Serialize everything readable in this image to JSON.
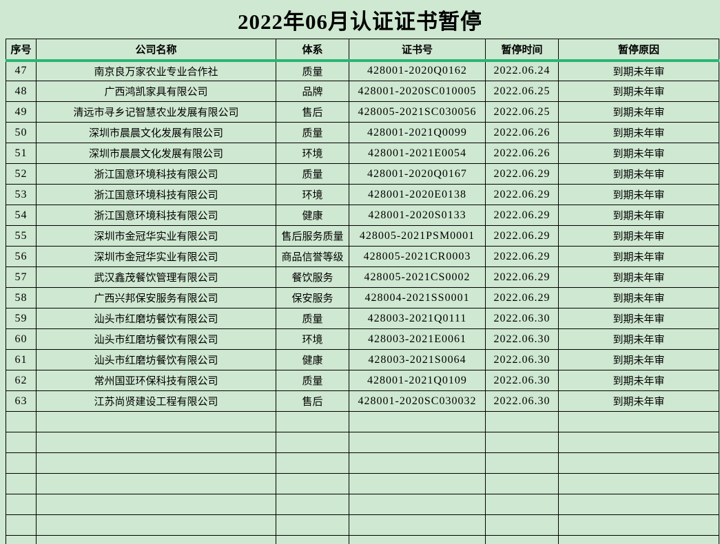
{
  "page": {
    "title": "2022年06月认证证书暂停"
  },
  "colors": {
    "background": "#cfe8d1",
    "header_underline": "#2ab573",
    "grid_line": "#000000",
    "text": "#000000"
  },
  "table": {
    "headers": [
      "序号",
      "公司名称",
      "体系",
      "证书号",
      "暂停时间",
      "暂停原因"
    ],
    "rows": [
      [
        "47",
        "南京良万家农业专业合作社",
        "质量",
        "428001-2020Q0162",
        "2022.06.24",
        "到期未年审"
      ],
      [
        "48",
        "广西鸿凯家具有限公司",
        "品牌",
        "428001-2020SC010005",
        "2022.06.25",
        "到期未年审"
      ],
      [
        "49",
        "清远市寻乡记智慧农业发展有限公司",
        "售后",
        "428005-2021SC030056",
        "2022.06.25",
        "到期未年审"
      ],
      [
        "50",
        "深圳市晨晨文化发展有限公司",
        "质量",
        "428001-2021Q0099",
        "2022.06.26",
        "到期未年审"
      ],
      [
        "51",
        "深圳市晨晨文化发展有限公司",
        "环境",
        "428001-2021E0054",
        "2022.06.26",
        "到期未年审"
      ],
      [
        "52",
        "浙江国意环境科技有限公司",
        "质量",
        "428001-2020Q0167",
        "2022.06.29",
        "到期未年审"
      ],
      [
        "53",
        "浙江国意环境科技有限公司",
        "环境",
        "428001-2020E0138",
        "2022.06.29",
        "到期未年审"
      ],
      [
        "54",
        "浙江国意环境科技有限公司",
        "健康",
        "428001-2020S0133",
        "2022.06.29",
        "到期未年审"
      ],
      [
        "55",
        "深圳市金冠华实业有限公司",
        "售后服务质量",
        "428005-2021PSM0001",
        "2022.06.29",
        "到期未年审"
      ],
      [
        "56",
        "深圳市金冠华实业有限公司",
        "商品信誉等级",
        "428005-2021CR0003",
        "2022.06.29",
        "到期未年审"
      ],
      [
        "57",
        "武汉鑫茂餐饮管理有限公司",
        "餐饮服务",
        "428005-2021CS0002",
        "2022.06.29",
        "到期未年审"
      ],
      [
        "58",
        "广西兴邦保安服务有限公司",
        "保安服务",
        "428004-2021SS0001",
        "2022.06.29",
        "到期未年审"
      ],
      [
        "59",
        "汕头市红磨坊餐饮有限公司",
        "质量",
        "428003-2021Q0111",
        "2022.06.30",
        "到期未年审"
      ],
      [
        "60",
        "汕头市红磨坊餐饮有限公司",
        "环境",
        "428003-2021E0061",
        "2022.06.30",
        "到期未年审"
      ],
      [
        "61",
        "汕头市红磨坊餐饮有限公司",
        "健康",
        "428003-2021S0064",
        "2022.06.30",
        "到期未年审"
      ],
      [
        "62",
        "常州国亚环保科技有限公司",
        "质量",
        "428001-2021Q0109",
        "2022.06.30",
        "到期未年审"
      ],
      [
        "63",
        "江苏尚贤建设工程有限公司",
        "售后",
        "428001-2020SC030032",
        "2022.06.30",
        "到期未年审"
      ]
    ],
    "empty_row_count": 7
  }
}
